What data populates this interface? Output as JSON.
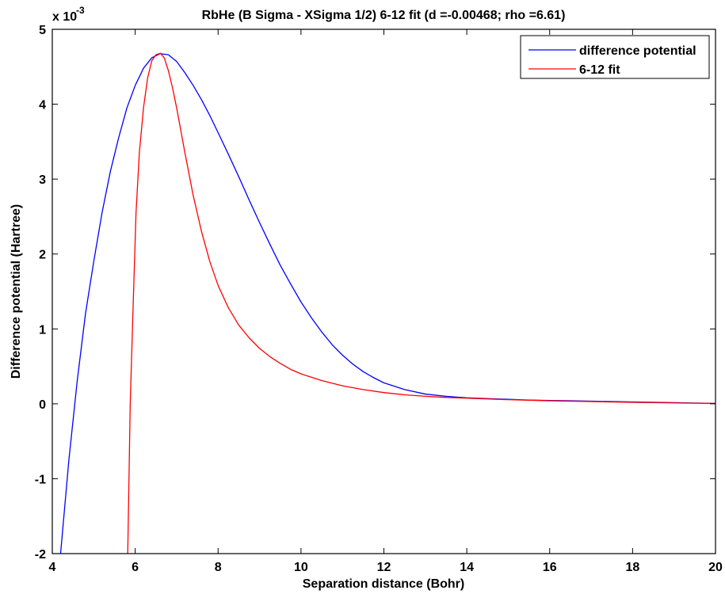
{
  "chart_data": {
    "type": "line",
    "title": "RbHe (B Sigma - XSigma 1/2) 6-12 fit (d =-0.00468; rho =6.61)",
    "xlabel": "Separation distance (Bohr)",
    "ylabel": "Difference potential (Hartree)",
    "y_exponent_base": "x 10",
    "y_exponent_power": "-3",
    "xlim": [
      4,
      20
    ],
    "ylim": [
      -2,
      5
    ],
    "ylim_scale": 0.001,
    "x_ticks": [
      4,
      6,
      8,
      10,
      12,
      14,
      16,
      18,
      20
    ],
    "x_tick_labels": [
      "4",
      "6",
      "8",
      "10",
      "12",
      "14",
      "16",
      "18",
      "20"
    ],
    "y_ticks": [
      -2,
      -1,
      0,
      1,
      2,
      3,
      4,
      5
    ],
    "y_tick_labels": [
      "-2",
      "-1",
      "0",
      "1",
      "2",
      "3",
      "4",
      "5"
    ],
    "grid": false,
    "legend_position": "top-right",
    "series": [
      {
        "name": "difference potential",
        "color": "#0000ff",
        "x": [
          4.2,
          4.4,
          4.6,
          4.8,
          5.0,
          5.2,
          5.4,
          5.6,
          5.8,
          6.0,
          6.2,
          6.4,
          6.6,
          6.8,
          7.0,
          7.2,
          7.4,
          7.6,
          7.8,
          8.0,
          8.25,
          8.5,
          8.75,
          9.0,
          9.25,
          9.5,
          9.75,
          10.0,
          10.25,
          10.5,
          10.75,
          11.0,
          11.25,
          11.5,
          11.75,
          12.0,
          12.5,
          13.0,
          13.5,
          14.0,
          14.5,
          15.0,
          15.5,
          16.0,
          16.5,
          17.0,
          18.0,
          19.0,
          20.0
        ],
        "y": [
          -2.0,
          -0.75,
          0.3,
          1.2,
          1.9,
          2.55,
          3.1,
          3.55,
          3.95,
          4.25,
          4.48,
          4.62,
          4.675,
          4.66,
          4.57,
          4.42,
          4.25,
          4.06,
          3.85,
          3.62,
          3.33,
          3.03,
          2.72,
          2.42,
          2.13,
          1.85,
          1.6,
          1.36,
          1.15,
          0.96,
          0.79,
          0.65,
          0.53,
          0.43,
          0.35,
          0.28,
          0.19,
          0.13,
          0.1,
          0.08,
          0.07,
          0.06,
          0.05,
          0.045,
          0.04,
          0.035,
          0.025,
          0.015,
          0.005
        ]
      },
      {
        "name": "6-12 fit",
        "color": "#ff0000",
        "x": [
          5.82,
          5.88,
          5.95,
          6.02,
          6.1,
          6.2,
          6.3,
          6.4,
          6.5,
          6.61,
          6.7,
          6.8,
          6.9,
          7.0,
          7.2,
          7.4,
          7.6,
          7.8,
          8.0,
          8.25,
          8.5,
          8.75,
          9.0,
          9.25,
          9.5,
          9.75,
          10.0,
          10.5,
          11.0,
          11.5,
          12.0,
          12.5,
          13.0,
          13.5,
          14.0,
          14.5,
          15.0,
          16.0,
          17.0,
          18.0,
          19.0,
          20.0
        ],
        "y": [
          -2.0,
          0.0,
          1.3,
          2.55,
          3.35,
          3.95,
          4.35,
          4.58,
          4.66,
          4.68,
          4.62,
          4.45,
          4.22,
          3.95,
          3.35,
          2.78,
          2.3,
          1.9,
          1.58,
          1.28,
          1.05,
          0.88,
          0.74,
          0.63,
          0.54,
          0.46,
          0.4,
          0.31,
          0.24,
          0.19,
          0.15,
          0.12,
          0.1,
          0.085,
          0.075,
          0.065,
          0.055,
          0.04,
          0.03,
          0.02,
          0.012,
          0.005
        ]
      }
    ]
  }
}
